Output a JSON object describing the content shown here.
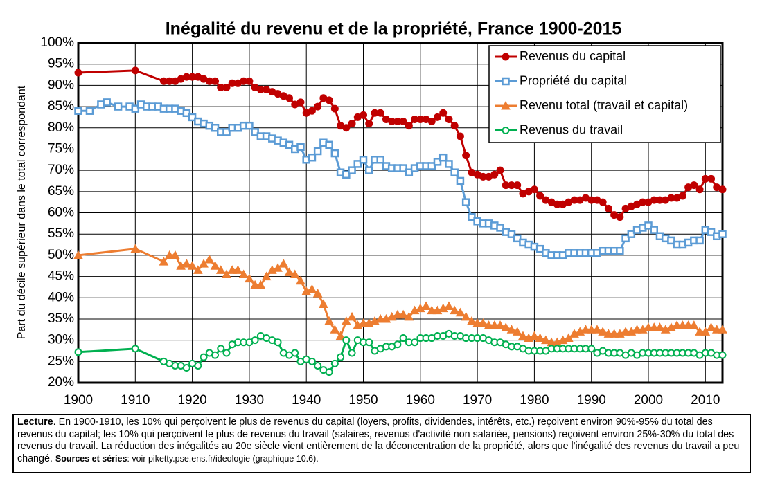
{
  "chart_data": {
    "type": "line",
    "title": "Inégalité du revenu et de la propriété, France 1900-2015",
    "ylabel": "Part du décile supérieur dans le total correspondant",
    "xlim": [
      1900,
      2013
    ],
    "xticks": [
      1900,
      1910,
      1920,
      1930,
      1940,
      1950,
      1960,
      1970,
      1980,
      1990,
      2000,
      2010
    ],
    "ylim": [
      20,
      100
    ],
    "yticks": [
      {
        "value": 20,
        "label": "20%"
      },
      {
        "value": 25,
        "label": "25%"
      },
      {
        "value": 30,
        "label": "30%"
      },
      {
        "value": 35,
        "label": "35%"
      },
      {
        "value": 40,
        "label": "40%"
      },
      {
        "value": 45,
        "label": "45%"
      },
      {
        "value": 50,
        "label": "50%"
      },
      {
        "value": 55,
        "label": "55%"
      },
      {
        "value": 60,
        "label": "60%"
      },
      {
        "value": 65,
        "label": "65%"
      },
      {
        "value": 70,
        "label": "70%"
      },
      {
        "value": 75,
        "label": "75%"
      },
      {
        "value": 80,
        "label": "80%"
      },
      {
        "value": 85,
        "label": "85%"
      },
      {
        "value": 90,
        "label": "90%"
      },
      {
        "value": 95,
        "label": "95%"
      },
      {
        "value": 100,
        "label": "100%"
      }
    ],
    "grid": true,
    "legend": "upper right",
    "x": [
      1900,
      1910,
      1915,
      1916,
      1917,
      1918,
      1919,
      1920,
      1921,
      1922,
      1923,
      1924,
      1925,
      1926,
      1927,
      1928,
      1929,
      1930,
      1931,
      1932,
      1933,
      1934,
      1935,
      1936,
      1937,
      1938,
      1939,
      1940,
      1941,
      1942,
      1943,
      1944,
      1945,
      1946,
      1947,
      1948,
      1949,
      1950,
      1951,
      1952,
      1953,
      1954,
      1955,
      1956,
      1957,
      1958,
      1959,
      1960,
      1961,
      1962,
      1963,
      1964,
      1965,
      1966,
      1967,
      1968,
      1969,
      1970,
      1971,
      1972,
      1973,
      1974,
      1975,
      1976,
      1977,
      1978,
      1979,
      1980,
      1981,
      1982,
      1983,
      1984,
      1985,
      1986,
      1987,
      1988,
      1989,
      1990,
      1991,
      1992,
      1993,
      1994,
      1995,
      1996,
      1997,
      1998,
      1999,
      2000,
      2001,
      2002,
      2003,
      2004,
      2005,
      2006,
      2007,
      2008,
      2009,
      2010,
      2011,
      2012,
      2013
    ],
    "series": [
      {
        "name": "Revenus du capital",
        "color": "#c00000",
        "marker": "circle",
        "values": [
          93,
          93.5,
          91,
          91,
          91,
          91.5,
          92,
          92,
          92,
          91.5,
          91,
          91,
          89.5,
          89.5,
          90.5,
          90.5,
          91,
          91,
          89.5,
          89,
          89,
          88.5,
          88,
          87.5,
          87,
          85.5,
          86,
          83.5,
          84,
          85,
          87,
          86.5,
          84.5,
          80.5,
          80,
          81,
          82.5,
          83,
          81,
          83.5,
          83.5,
          82,
          81.5,
          81.5,
          81.5,
          80.5,
          82,
          82,
          82,
          81.5,
          82.5,
          83.5,
          82,
          80.5,
          78,
          73.5,
          69.5,
          69,
          68.5,
          68.5,
          69,
          70,
          66.5,
          66.5,
          66.5,
          64.5,
          65,
          65.5,
          64,
          63,
          62.5,
          62,
          62,
          62.5,
          63,
          63,
          63.5,
          63,
          63,
          62.5,
          61,
          59.5,
          59,
          61,
          61.5,
          62,
          62.5,
          62.5,
          63,
          63,
          63,
          63.5,
          63.5,
          64,
          66,
          66.5,
          65.5,
          68,
          68,
          66,
          65.5
        ]
      },
      {
        "name": "Propriété du capital",
        "color": "#5b9bd5",
        "marker": "square",
        "x": [
          1900,
          1902,
          1904,
          1905,
          1907,
          1909,
          1910,
          1911,
          1912,
          1913,
          1914,
          1915,
          1916,
          1917,
          1918,
          1919,
          1920,
          1921,
          1922,
          1923,
          1924,
          1925,
          1926,
          1927,
          1928,
          1929,
          1930,
          1931,
          1932,
          1933,
          1934,
          1935,
          1936,
          1937,
          1938,
          1939,
          1940,
          1941,
          1942,
          1943,
          1944,
          1945,
          1946,
          1947,
          1948,
          1949,
          1950,
          1951,
          1952,
          1953,
          1954,
          1955,
          1956,
          1957,
          1958,
          1959,
          1960,
          1961,
          1962,
          1963,
          1964,
          1965,
          1966,
          1967,
          1968,
          1969,
          1970,
          1971,
          1972,
          1973,
          1974,
          1975,
          1976,
          1977,
          1978,
          1979,
          1980,
          1981,
          1982,
          1983,
          1984,
          1985,
          1986,
          1987,
          1988,
          1989,
          1990,
          1991,
          1992,
          1993,
          1994,
          1995,
          1996,
          1997,
          1998,
          1999,
          2000,
          2001,
          2002,
          2003,
          2004,
          2005,
          2006,
          2007,
          2008,
          2009,
          2010,
          2011,
          2012,
          2013
        ],
        "values": [
          84,
          84,
          85.5,
          86,
          85,
          85,
          84.5,
          85.5,
          85,
          85,
          85,
          84.5,
          84.5,
          84.5,
          84,
          83.5,
          82.5,
          81.5,
          81,
          80.5,
          80,
          79,
          79,
          80,
          80,
          80.5,
          80.5,
          79,
          78,
          78,
          77.5,
          77,
          76.5,
          76,
          75,
          75.5,
          72.5,
          73,
          74.5,
          76.5,
          76,
          74,
          69.5,
          69,
          70,
          71.5,
          72.5,
          70,
          72.5,
          72.5,
          71,
          70.5,
          70.5,
          70.5,
          69.5,
          70.5,
          71,
          71,
          71,
          72,
          73,
          71.5,
          69.5,
          67.5,
          62.5,
          59,
          58,
          57.5,
          57.5,
          57,
          56.5,
          55.5,
          55,
          54,
          53,
          52.5,
          52,
          51.5,
          50.5,
          50,
          50,
          50,
          50.5,
          50.5,
          50.5,
          50.5,
          50.5,
          50.5,
          51,
          51,
          51,
          51,
          54,
          55,
          56,
          56.5,
          57,
          56,
          54.5,
          54,
          53.5,
          52.5,
          52.5,
          53,
          53.5,
          53.5,
          56,
          55.5,
          54.5,
          55
        ]
      },
      {
        "name": "Revenu total (travail et capital)",
        "color": "#ed7d31",
        "marker": "triangle",
        "values": [
          50,
          51.5,
          48.5,
          50,
          50,
          47.5,
          48,
          47.5,
          46.5,
          48,
          49,
          47.5,
          46.5,
          45.5,
          46.5,
          46.5,
          45.5,
          44.5,
          43,
          43,
          45,
          46.5,
          47,
          48,
          46,
          45.5,
          44,
          41.5,
          42,
          41,
          38.5,
          34.5,
          32.5,
          31,
          34.5,
          35.5,
          33.5,
          34,
          34,
          34.5,
          35,
          35,
          35.5,
          36,
          36,
          35.5,
          37,
          37.5,
          38,
          37,
          37,
          37.5,
          38,
          37,
          36.5,
          35.5,
          34.5,
          34,
          34,
          33.5,
          33.5,
          33.5,
          33,
          32.5,
          32,
          31,
          30.5,
          31,
          30.5,
          30,
          29.5,
          29.5,
          30,
          30.5,
          31.5,
          32,
          32.5,
          32.5,
          32.5,
          32,
          31.5,
          31.5,
          31.5,
          32,
          32,
          32.5,
          32.5,
          33,
          33,
          33,
          32.5,
          33,
          33.5,
          33.5,
          33.5,
          33.5,
          32,
          32,
          33,
          32.5,
          32.5
        ]
      },
      {
        "name": "Revenus du travail",
        "color": "#00b050",
        "marker": "hollow-circle",
        "values": [
          27.2,
          28,
          25,
          24.5,
          24,
          24,
          23.5,
          24.5,
          24,
          26,
          27,
          26.5,
          28,
          27,
          29,
          29.5,
          29.5,
          29.5,
          30,
          31,
          30.5,
          30,
          29.5,
          27,
          26.5,
          27,
          25,
          25.5,
          25,
          24,
          23,
          22.5,
          24.5,
          26,
          30,
          27,
          30,
          29.5,
          29.5,
          27.5,
          28,
          28.5,
          28.5,
          29,
          30.5,
          29.5,
          29.5,
          30.5,
          30.5,
          30.5,
          31,
          31,
          31.5,
          31,
          31,
          30.5,
          30.5,
          30.5,
          30.5,
          30,
          29.5,
          29.5,
          29,
          28.5,
          28.5,
          28,
          27.5,
          27.5,
          27.5,
          27.5,
          28,
          28,
          28,
          28,
          28,
          28,
          28,
          28,
          27,
          27.5,
          27,
          27,
          27,
          26.5,
          27,
          26.5,
          27,
          27,
          27,
          27,
          27,
          27,
          27,
          27,
          27,
          27,
          26.5,
          27,
          27,
          26.5,
          26.5
        ]
      }
    ],
    "note": {
      "lecture_label": "Lecture",
      "text": ". En 1900-1910, les 10% qui perçoivent le plus de revenus du capital (loyers, profits, dividendes, intérêts, etc.) reçoivent environ 90%-95% du total des revenus du capital; les 10% qui perçoivent le plus de revenus du travail (salaires, revenus d'activité non salariée, pensions) reçoivent environ 25%-30% du total des revenus du travail. La réduction des inégalités au 20e siècle vient entièrement de la déconcentration de la propriété, alors que l'inégalité des revenus du travail a peu changé. ",
      "sources_label": "Sources et séries",
      "sources_text": ": voir piketty.pse.ens.fr/ideologie (graphique 10.6)."
    }
  }
}
